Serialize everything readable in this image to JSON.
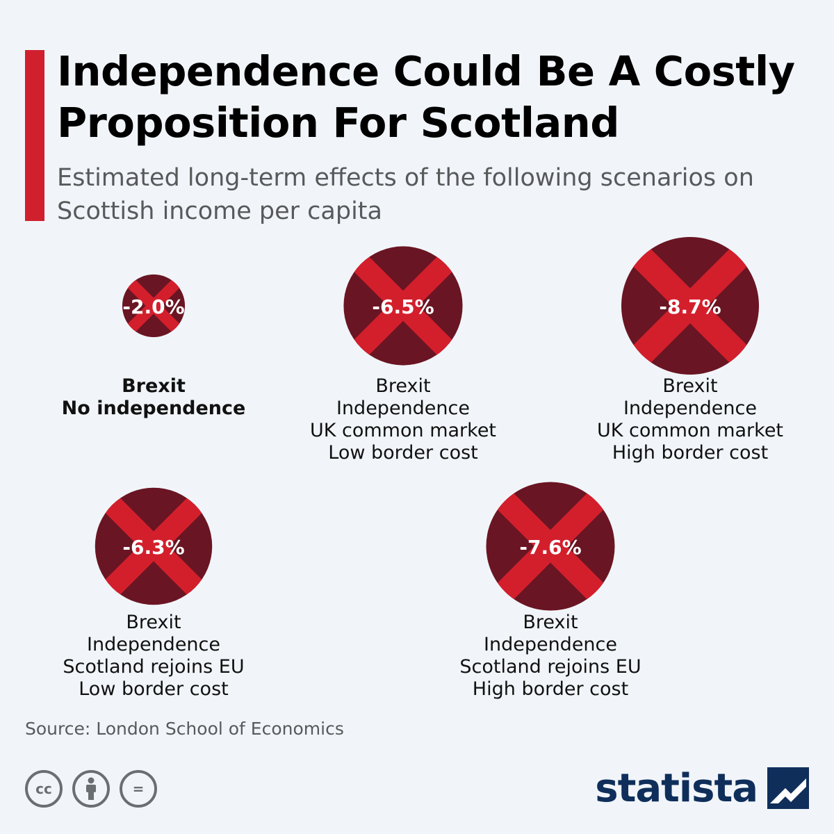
{
  "header": {
    "title": "Independence Could Be A Costly Proposition For Scotland",
    "subtitle": "Estimated long-term effects of the following scenarios on Scottish income per capita"
  },
  "colors": {
    "accent": "#d0202e",
    "bubble_dark": "#6a1523",
    "bubble_cross": "#d31f2c",
    "label_text": "#ffffff"
  },
  "chart_data": {
    "type": "bubble",
    "title": "Independence Could Be A Costly Proposition For Scotland",
    "subtitle": "Estimated long-term effects of the following scenarios on Scottish income per capita",
    "unit": "%",
    "grid": false,
    "legend": "none",
    "points": [
      {
        "value": -2.0,
        "label": "-2.0%",
        "scenario": [
          "Brexit",
          "No independence"
        ],
        "bold_caption": true
      },
      {
        "value": -6.5,
        "label": "-6.5%",
        "scenario": [
          "Brexit",
          "Independence",
          "UK common market",
          "Low border cost"
        ],
        "bold_caption": false
      },
      {
        "value": -8.7,
        "label": "-8.7%",
        "scenario": [
          "Brexit",
          "Independence",
          "UK common market",
          "High border cost"
        ],
        "bold_caption": false
      },
      {
        "value": -6.3,
        "label": "-6.3%",
        "scenario": [
          "Brexit",
          "Independence",
          "Scotland rejoins EU",
          "Low border cost"
        ],
        "bold_caption": false
      },
      {
        "value": -7.6,
        "label": "-7.6%",
        "scenario": [
          "Brexit",
          "Independence",
          "Scotland rejoins EU",
          "High border cost"
        ],
        "bold_caption": false
      }
    ]
  },
  "footer": {
    "source": "Source: London School of Economics",
    "license_icons": [
      "cc-icon",
      "attribution-icon",
      "no-derivatives-icon"
    ],
    "cc_text": "cc",
    "nd_text": "=",
    "brand": "statista"
  }
}
